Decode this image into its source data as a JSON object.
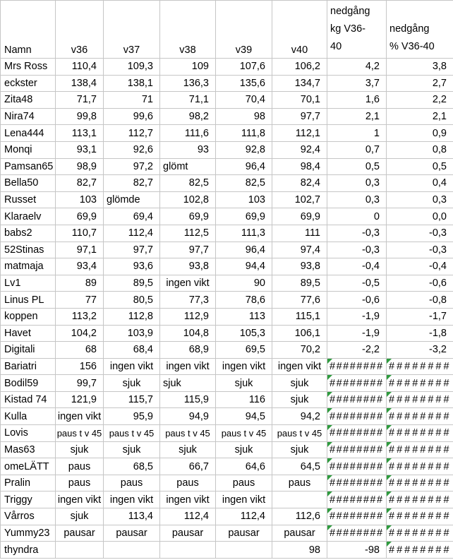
{
  "sheet": {
    "colors": {
      "gridline": "#c6c6c6",
      "error_triangle": "#2e9b3e",
      "text": "#000000"
    },
    "columns": {
      "name_header": "Namn",
      "week_headers": [
        "v36",
        "v37",
        "v38",
        "v39",
        "v40"
      ],
      "kg_header": "nedgång\n kg V36-\n40",
      "pct_header": "nedgång\n% V36-40"
    },
    "rows": [
      {
        "name": "Mrs Ross",
        "values": [
          "110,4",
          "109,3",
          "109",
          "107,6",
          "106,2",
          "4,2",
          "3,8"
        ]
      },
      {
        "name": "eckster",
        "values": [
          "138,4",
          "138,1",
          "136,3",
          "135,6",
          "134,7",
          "3,7",
          "2,7"
        ]
      },
      {
        "name": "Zita48",
        "values": [
          "71,7",
          "71",
          "71,1",
          "70,4",
          "70,1",
          "1,6",
          "2,2"
        ]
      },
      {
        "name": "Nira74",
        "values": [
          "99,8",
          "99,6",
          "98,2",
          "98",
          "97,7",
          "2,1",
          "2,1"
        ]
      },
      {
        "name": "Lena444",
        "values": [
          "113,1",
          "112,7",
          "111,6",
          "111,8",
          "112,1",
          "1",
          "0,9"
        ]
      },
      {
        "name": "Monqi",
        "values": [
          "93,1",
          "92,6",
          "93",
          "92,8",
          "92,4",
          "0,7",
          "0,8"
        ]
      },
      {
        "name": "Pamsan65",
        "values": [
          "98,9",
          "97,2",
          {
            "v": "glömt",
            "left": true
          },
          "96,4",
          "98,4",
          "0,5",
          "0,5"
        ]
      },
      {
        "name": "Bella50",
        "values": [
          "82,7",
          "82,7",
          "82,5",
          "82,5",
          "82,4",
          "0,3",
          "0,4"
        ]
      },
      {
        "name": "Russet",
        "values": [
          "103",
          {
            "v": "glömde",
            "left": true
          },
          "102,8",
          "103",
          "102,7",
          "0,3",
          "0,3"
        ]
      },
      {
        "name": "Klaraelv",
        "values": [
          "69,9",
          "69,4",
          "69,9",
          "69,9",
          "69,9",
          "0",
          "0,0"
        ]
      },
      {
        "name": "babs2",
        "values": [
          "110,7",
          "112,4",
          "112,5",
          "111,3",
          "111",
          "-0,3",
          "-0,3"
        ]
      },
      {
        "name": "52Stinas",
        "values": [
          "97,1",
          "97,7",
          "97,7",
          "96,4",
          "97,4",
          "-0,3",
          "-0,3"
        ]
      },
      {
        "name": "matmaja",
        "values": [
          "93,4",
          "93,6",
          "93,8",
          "94,4",
          "93,8",
          "-0,4",
          "-0,4"
        ]
      },
      {
        "name": "Lv1",
        "values": [
          "89",
          "89,5",
          "ingen vikt",
          "90",
          "89,5",
          "-0,5",
          "-0,6"
        ]
      },
      {
        "name": "Linus PL",
        "values": [
          "77",
          "80,5",
          "77,3",
          "78,6",
          "77,6",
          "-0,6",
          "-0,8"
        ]
      },
      {
        "name": "koppen",
        "values": [
          "113,2",
          "112,8",
          "112,9",
          "113",
          "115,1",
          "-1,9",
          "-1,7"
        ]
      },
      {
        "name": "Havet",
        "values": [
          "104,2",
          "103,9",
          "104,8",
          "105,3",
          "106,1",
          "-1,9",
          "-1,8"
        ]
      },
      {
        "name": "Digitali",
        "values": [
          "68",
          "68,4",
          "68,9",
          "69,5",
          "70,2",
          "-2,2",
          "-3,2"
        ]
      },
      {
        "name": "Bariatri",
        "values": [
          "156",
          "ingen vikt",
          "ingen vikt",
          "ingen vikt",
          "ingen vikt",
          "########",
          "########"
        ]
      },
      {
        "name": "Bodil59",
        "values": [
          "99,7",
          "sjuk",
          {
            "v": "sjuk",
            "left": true
          },
          "sjuk",
          "sjuk",
          "########",
          "########"
        ]
      },
      {
        "name": "Kistad 74",
        "values": [
          "121,9",
          "115,7",
          "115,9",
          "116",
          "sjuk",
          "########",
          "########"
        ]
      },
      {
        "name": "Kulla",
        "values": [
          "ingen vikt",
          "95,9",
          "94,9",
          "94,5",
          "94,2",
          "########",
          "########"
        ]
      },
      {
        "name": "Lovis",
        "values": [
          "paus t v 45",
          "paus t v 45",
          "paus t v 45",
          "paus t v 45",
          "paus t v 45",
          "########",
          "########"
        ]
      },
      {
        "name": "Mas63",
        "values": [
          "sjuk",
          "sjuk",
          "sjuk",
          "sjuk",
          "sjuk",
          "########",
          "########"
        ]
      },
      {
        "name": "omeLÄTT",
        "values": [
          "paus",
          "68,5",
          "66,7",
          "64,6",
          "64,5",
          "########",
          "########"
        ]
      },
      {
        "name": "Pralin",
        "values": [
          "paus",
          "paus",
          "paus",
          "paus",
          "paus",
          "########",
          "########"
        ]
      },
      {
        "name": "Triggy",
        "values": [
          "ingen vikt",
          "ingen vikt",
          "ingen vikt",
          "ingen vikt",
          "",
          "########",
          "########"
        ]
      },
      {
        "name": "Vårros",
        "values": [
          "sjuk",
          "113,4",
          "112,4",
          "112,4",
          "112,6",
          "########",
          "########"
        ]
      },
      {
        "name": "Yummy23",
        "values": [
          "pausar",
          "pausar",
          "pausar",
          "pausar",
          "pausar",
          "########",
          "########"
        ]
      },
      {
        "name": "thyndra",
        "values": [
          "",
          "",
          "",
          "",
          "98",
          "-98",
          "########"
        ]
      }
    ]
  }
}
